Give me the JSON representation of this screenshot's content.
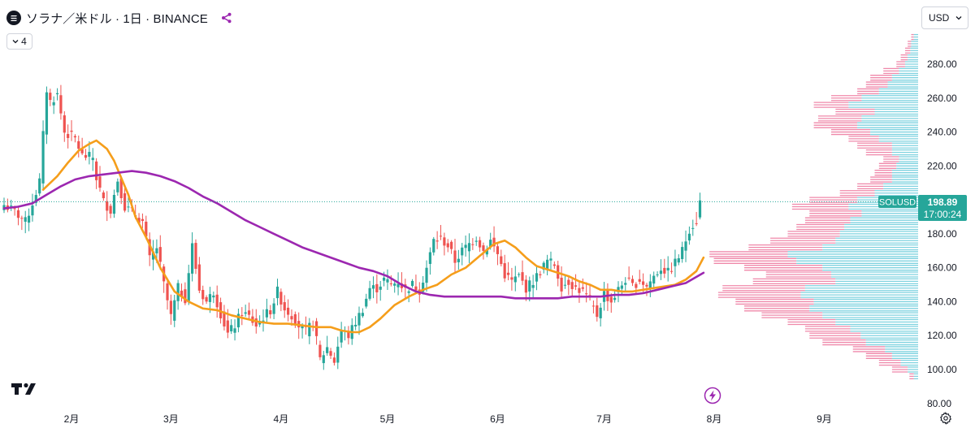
{
  "header": {
    "title": "ソラナ／米ドル · 1日 · BINANCE",
    "collapse_count": "4"
  },
  "currency": "USD",
  "colors": {
    "up": "#26a69a",
    "down": "#ef5350",
    "ma_short": "#f59e1b",
    "ma_long": "#9c27b0",
    "vp_up": "#5ec8d8",
    "vp_down": "#ec6b95",
    "last_price": "#26a69a"
  },
  "icons": [
    "solana-logo-icon",
    "share-icon",
    "chevron-down-icon",
    "tradingview-logo-icon",
    "flash-icon",
    "gear-icon"
  ],
  "price_label": {
    "symbol": "SOLUSD",
    "price": "198.89",
    "countdown": "17:00:24"
  },
  "chart_data": {
    "type": "candlestick",
    "title": "ソラナ／米ドル · 1日 · BINANCE",
    "ylim": [
      80,
      300
    ],
    "y_ticks": [
      80,
      100,
      120,
      140,
      160,
      180,
      200,
      220,
      240,
      260,
      280
    ],
    "y_tick_labels": [
      "80.00",
      "100.00",
      "120.00",
      "140.00",
      "160.00",
      "180.00",
      "200.00",
      "220.00",
      "240.00",
      "260.00",
      "280.00"
    ],
    "x_ticks": [
      "2月",
      "3月",
      "4月",
      "5月",
      "6月",
      "7月",
      "8月",
      "9月"
    ],
    "x_tick_days": [
      19,
      47,
      78,
      108,
      139,
      169,
      200,
      231
    ],
    "grid": false,
    "last_price": 198.89,
    "ohlc_anchor_closes": [
      [
        0,
        197
      ],
      [
        3,
        193
      ],
      [
        6,
        187
      ],
      [
        8,
        198
      ],
      [
        10,
        211
      ],
      [
        12,
        265
      ],
      [
        13,
        258
      ],
      [
        15,
        262
      ],
      [
        17,
        240
      ],
      [
        20,
        236
      ],
      [
        22,
        226
      ],
      [
        25,
        225
      ],
      [
        26,
        213
      ],
      [
        28,
        199
      ],
      [
        30,
        194
      ],
      [
        32,
        212
      ],
      [
        34,
        196
      ],
      [
        36,
        193
      ],
      [
        39,
        187
      ],
      [
        41,
        165
      ],
      [
        43,
        172
      ],
      [
        45,
        150
      ],
      [
        47,
        131
      ],
      [
        49,
        148
      ],
      [
        51,
        142
      ],
      [
        53,
        173
      ],
      [
        55,
        147
      ],
      [
        57,
        140
      ],
      [
        59,
        146
      ],
      [
        61,
        133
      ],
      [
        63,
        121
      ],
      [
        65,
        126
      ],
      [
        67,
        134
      ],
      [
        69,
        131
      ],
      [
        71,
        126
      ],
      [
        73,
        131
      ],
      [
        75,
        135
      ],
      [
        77,
        146
      ],
      [
        79,
        136
      ],
      [
        81,
        132
      ],
      [
        83,
        126
      ],
      [
        85,
        122
      ],
      [
        87,
        128
      ],
      [
        89,
        106
      ],
      [
        91,
        113
      ],
      [
        93,
        105
      ],
      [
        95,
        123
      ],
      [
        97,
        120
      ],
      [
        99,
        128
      ],
      [
        101,
        136
      ],
      [
        103,
        148
      ],
      [
        105,
        148
      ],
      [
        107,
        153
      ],
      [
        109,
        150
      ],
      [
        111,
        152
      ],
      [
        113,
        147
      ],
      [
        115,
        150
      ],
      [
        117,
        147
      ],
      [
        119,
        160
      ],
      [
        121,
        176
      ],
      [
        123,
        177
      ],
      [
        125,
        173
      ],
      [
        127,
        164
      ],
      [
        129,
        170
      ],
      [
        131,
        174
      ],
      [
        133,
        178
      ],
      [
        135,
        170
      ],
      [
        137,
        176
      ],
      [
        139,
        168
      ],
      [
        141,
        156
      ],
      [
        143,
        152
      ],
      [
        145,
        155
      ],
      [
        147,
        148
      ],
      [
        149,
        152
      ],
      [
        151,
        158
      ],
      [
        153,
        164
      ],
      [
        155,
        162
      ],
      [
        157,
        149
      ],
      [
        159,
        152
      ],
      [
        161,
        148
      ],
      [
        163,
        146
      ],
      [
        165,
        140
      ],
      [
        167,
        132
      ],
      [
        169,
        145
      ],
      [
        171,
        140
      ],
      [
        173,
        147
      ],
      [
        175,
        153
      ],
      [
        177,
        149
      ],
      [
        179,
        153
      ],
      [
        181,
        149
      ],
      [
        183,
        155
      ],
      [
        185,
        160
      ],
      [
        187,
        157
      ],
      [
        189,
        163
      ],
      [
        191,
        170
      ],
      [
        193,
        183
      ],
      [
        195,
        188
      ],
      [
        196,
        198.89
      ]
    ],
    "series": [
      {
        "name": "",
        "type": "ma",
        "x": [
          11,
          15,
          18,
          21,
          24,
          26,
          29,
          31,
          33,
          35,
          37,
          40,
          44,
          48,
          52,
          56,
          60,
          64,
          68,
          72,
          76,
          80,
          84,
          88,
          92,
          95,
          98,
          100,
          103,
          106,
          110,
          114,
          118,
          122,
          126,
          130,
          134,
          138,
          141,
          144,
          147,
          150,
          153,
          156,
          159,
          162,
          165,
          168,
          171,
          174,
          177,
          180,
          183,
          186,
          189,
          192,
          195,
          197
        ],
        "values": [
          206,
          214,
          222,
          229,
          233,
          235,
          230,
          223,
          213,
          203,
          190,
          178,
          160,
          146,
          140,
          136,
          135,
          132,
          130,
          128,
          127,
          127,
          126,
          125,
          125,
          123,
          122,
          122,
          125,
          130,
          138,
          143,
          147,
          150,
          156,
          160,
          167,
          174,
          176,
          172,
          166,
          161,
          159,
          157,
          155,
          152,
          150,
          147,
          147,
          146,
          146,
          147,
          148,
          149,
          150,
          153,
          158,
          166
        ]
      },
      {
        "name": "",
        "type": "ma",
        "x": [
          0,
          4,
          8,
          12,
          16,
          20,
          24,
          28,
          32,
          36,
          40,
          44,
          48,
          52,
          56,
          60,
          64,
          68,
          72,
          76,
          80,
          84,
          88,
          92,
          96,
          100,
          104,
          108,
          112,
          116,
          120,
          124,
          128,
          132,
          136,
          140,
          144,
          148,
          152,
          156,
          160,
          164,
          168,
          172,
          176,
          180,
          184,
          188,
          192,
          197
        ],
        "values": [
          195,
          196,
          198,
          203,
          208,
          212,
          214,
          215,
          216,
          217,
          216,
          214,
          211,
          207,
          202,
          198,
          193,
          188,
          184,
          180,
          176,
          172,
          169,
          166,
          163,
          160,
          158,
          155,
          150,
          146,
          144,
          143,
          143,
          143,
          143,
          143,
          142,
          142,
          142,
          142,
          143,
          143,
          143,
          144,
          144,
          145,
          147,
          149,
          151,
          157
        ]
      }
    ],
    "volume_profile": {
      "rows_price": [
        96,
        100,
        104,
        108,
        112,
        116,
        120,
        124,
        128,
        132,
        136,
        140,
        144,
        148,
        152,
        156,
        160,
        164,
        168,
        172,
        176,
        180,
        184,
        188,
        192,
        196,
        200,
        204,
        208,
        212,
        216,
        220,
        224,
        228,
        232,
        236,
        240,
        244,
        248,
        252,
        256,
        260,
        264,
        268,
        272,
        276,
        280,
        284,
        288,
        292,
        296
      ],
      "total": [
        10,
        30,
        45,
        60,
        75,
        110,
        125,
        130,
        150,
        180,
        200,
        210,
        230,
        225,
        190,
        175,
        200,
        235,
        240,
        195,
        170,
        150,
        140,
        130,
        125,
        145,
        125,
        90,
        70,
        55,
        50,
        45,
        40,
        60,
        70,
        80,
        100,
        120,
        115,
        95,
        120,
        100,
        70,
        60,
        55,
        40,
        25,
        20,
        15,
        12,
        8
      ],
      "up": [
        5,
        12,
        20,
        30,
        38,
        60,
        66,
        78,
        95,
        110,
        125,
        120,
        135,
        130,
        95,
        100,
        110,
        140,
        150,
        110,
        95,
        90,
        85,
        78,
        65,
        80,
        70,
        50,
        40,
        30,
        30,
        25,
        22,
        30,
        30,
        45,
        55,
        70,
        65,
        50,
        80,
        65,
        45,
        35,
        30,
        22,
        15,
        12,
        9,
        8,
        5
      ]
    }
  }
}
